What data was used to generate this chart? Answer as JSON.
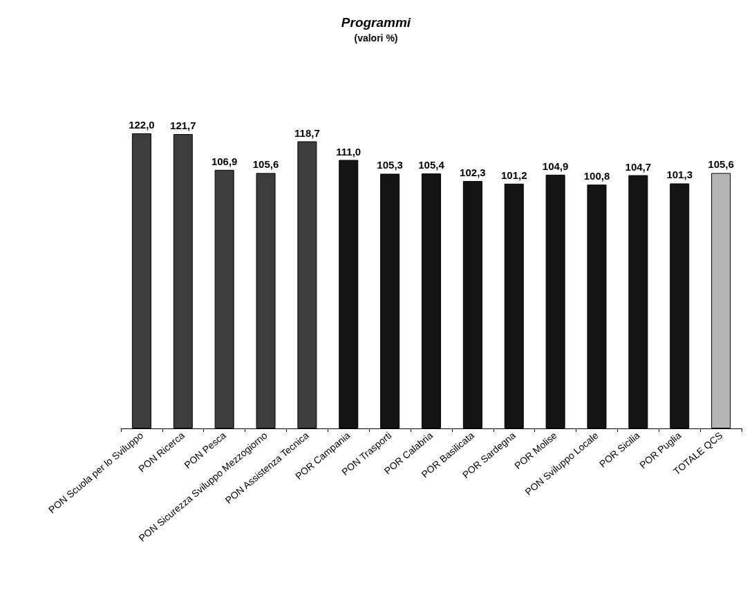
{
  "chart_data": {
    "type": "bar",
    "title": "Programmi",
    "subtitle": "(valori %)",
    "categories": [
      "PON Scuola per lo Sviluppo",
      "PON Ricerca",
      "PON Pesca",
      "PON Sicurezza Sviluppo Mezzogiorno",
      "PON Assistenza Tecnica",
      "POR Campania",
      "PON Trasporti",
      "POR Calabria",
      "POR Basilicata",
      "POR Sardegna",
      "POR Molise",
      "PON Sviluppo Locale",
      "POR Sicilia",
      "POR Puglia",
      "TOTALE QCS"
    ],
    "values": [
      122.0,
      121.7,
      106.9,
      105.6,
      118.7,
      111.0,
      105.3,
      105.4,
      102.3,
      101.2,
      104.9,
      100.8,
      104.7,
      101.3,
      105.6
    ],
    "value_labels": [
      "122,0",
      "121,7",
      "106,9",
      "105,6",
      "118,7",
      "111,0",
      "105,3",
      "105,4",
      "102,3",
      "101,2",
      "104,9",
      "100,8",
      "104,7",
      "101,3",
      "105,6"
    ],
    "colors": [
      "#3c3c3c",
      "#3c3c3c",
      "#3c3c3c",
      "#3c3c3c",
      "#3c3c3c",
      "#141414",
      "#141414",
      "#141414",
      "#141414",
      "#141414",
      "#141414",
      "#141414",
      "#141414",
      "#141414",
      "#b4b4b4"
    ],
    "tick_labels": "x"
  }
}
